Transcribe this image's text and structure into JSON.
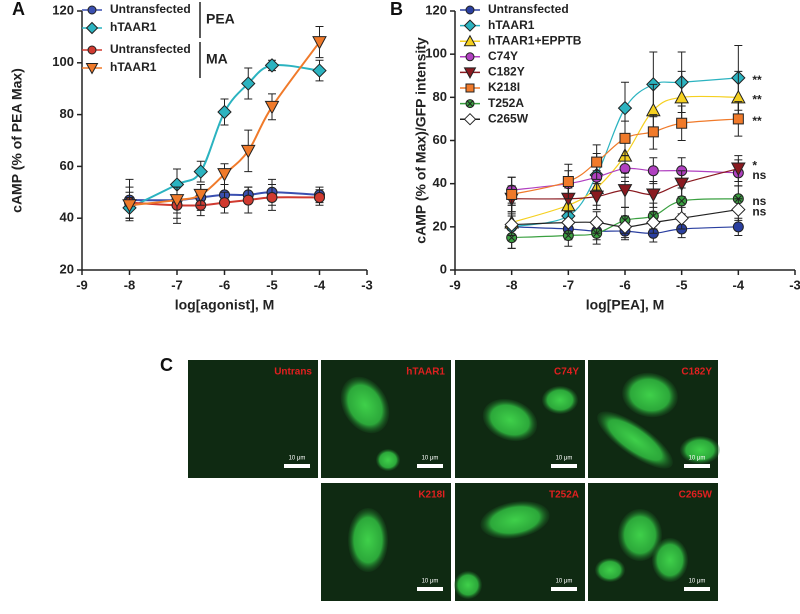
{
  "chart_data": [
    {
      "type": "line",
      "label": "A",
      "xlabel": "log[agonist], M",
      "ylabel": "cAMP (% of PEA Max)",
      "xlim": [
        -9,
        -3
      ],
      "xticks": [
        -9,
        -8,
        -7,
        -6,
        -5,
        -4,
        -3
      ],
      "ylim": [
        20,
        120
      ],
      "yticks": [
        20,
        40,
        60,
        80,
        100,
        120
      ],
      "legend_groups": [
        "PEA",
        "MA"
      ],
      "x": [
        -8,
        -7,
        -6.5,
        -6,
        -5.5,
        -5,
        -4
      ],
      "series": [
        {
          "name": "Untransfected",
          "color": "#3a4fb0",
          "marker": "circle",
          "values": [
            47,
            47,
            48,
            49,
            49,
            50,
            49
          ],
          "errors": [
            8,
            7,
            5,
            4,
            3,
            5,
            3
          ]
        },
        {
          "name": "hTAAR1",
          "color": "#2bb3c0",
          "marker": "diamond",
          "values": [
            44,
            53,
            58,
            81,
            92,
            99,
            97
          ],
          "errors": [
            4,
            6,
            4,
            5,
            6,
            2,
            4
          ]
        },
        {
          "name": "Untransfected",
          "color": "#d03a30",
          "marker": "circle",
          "values": [
            46,
            45,
            45,
            46,
            47,
            48,
            48
          ],
          "errors": [
            6,
            7,
            4,
            4,
            5,
            5,
            3
          ]
        },
        {
          "name": "hTAAR1",
          "color": "#f07a2a",
          "marker": "triangle-down",
          "values": [
            45,
            47,
            49,
            57,
            66,
            83,
            108
          ],
          "errors": [
            5,
            5,
            4,
            4,
            8,
            5,
            6
          ]
        }
      ]
    },
    {
      "type": "line",
      "label": "B",
      "xlabel": "log[PEA], M",
      "ylabel": "cAMP (% of Max)/GFP intensity",
      "xlim": [
        -9,
        -3
      ],
      "xticks": [
        -9,
        -8,
        -7,
        -6,
        -5,
        -4,
        -3
      ],
      "ylim": [
        0,
        120
      ],
      "yticks": [
        0,
        20,
        40,
        60,
        80,
        100,
        120
      ],
      "x": [
        -8,
        -7,
        -6.5,
        -6,
        -5.5,
        -5,
        -4
      ],
      "series": [
        {
          "name": "Untransfected",
          "color": "#2a3fa0",
          "marker": "circle",
          "values": [
            20,
            19,
            18,
            18,
            17,
            19,
            20
          ],
          "errors": [
            5,
            5,
            4,
            4,
            4,
            4,
            4
          ]
        },
        {
          "name": "hTAAR1",
          "color": "#2bb3c0",
          "marker": "diamond",
          "values": [
            20,
            25,
            44,
            75,
            86,
            87,
            89
          ],
          "errors": [
            10,
            8,
            10,
            12,
            15,
            14,
            15
          ],
          "annotation": "**"
        },
        {
          "name": "hTAAR1+EPPTB",
          "color": "#f5d020",
          "marker": "triangle",
          "values": [
            22,
            30,
            38,
            53,
            74,
            80,
            80
          ],
          "errors": [
            8,
            8,
            8,
            10,
            12,
            12,
            12
          ],
          "annotation": "**"
        },
        {
          "name": "C74Y",
          "color": "#b040c0",
          "marker": "circle",
          "values": [
            37,
            40,
            43,
            47,
            46,
            46,
            45
          ],
          "errors": [
            6,
            6,
            6,
            6,
            6,
            6,
            6
          ],
          "annotation": "ns"
        },
        {
          "name": "C182Y",
          "color": "#8a1a20",
          "marker": "triangle-down",
          "values": [
            33,
            33,
            34,
            37,
            35,
            40,
            47
          ],
          "errors": [
            6,
            6,
            6,
            8,
            6,
            6,
            6
          ],
          "annotation": "*"
        },
        {
          "name": "K218I",
          "color": "#f07a2a",
          "marker": "square",
          "values": [
            35,
            41,
            50,
            61,
            64,
            68,
            70
          ],
          "errors": [
            8,
            8,
            8,
            8,
            8,
            8,
            8
          ],
          "annotation": "**"
        },
        {
          "name": "T252A",
          "color": "#3aa040",
          "marker": "circle-x",
          "values": [
            15,
            16,
            17,
            23,
            25,
            32,
            33
          ],
          "errors": [
            5,
            5,
            5,
            6,
            6,
            6,
            6
          ],
          "annotation": "ns"
        },
        {
          "name": "C265W",
          "color": "#ffffff",
          "marker": "diamond",
          "values": [
            21,
            22,
            22,
            20,
            22,
            24,
            28
          ],
          "errors": [
            5,
            5,
            5,
            5,
            5,
            5,
            5
          ],
          "annotation": "ns"
        }
      ]
    }
  ],
  "panel_c": {
    "label": "C",
    "images": [
      {
        "label": "Untrans",
        "scale": "10 μm"
      },
      {
        "label": "hTAAR1",
        "scale": "10 μm"
      },
      {
        "label": "C74Y",
        "scale": "10 μm"
      },
      {
        "label": "C182Y",
        "scale": "10 μm"
      },
      {
        "label": "K218I",
        "scale": "10 μm"
      },
      {
        "label": "T252A",
        "scale": "10 μm"
      },
      {
        "label": "C265W",
        "scale": "10 μm"
      }
    ]
  }
}
